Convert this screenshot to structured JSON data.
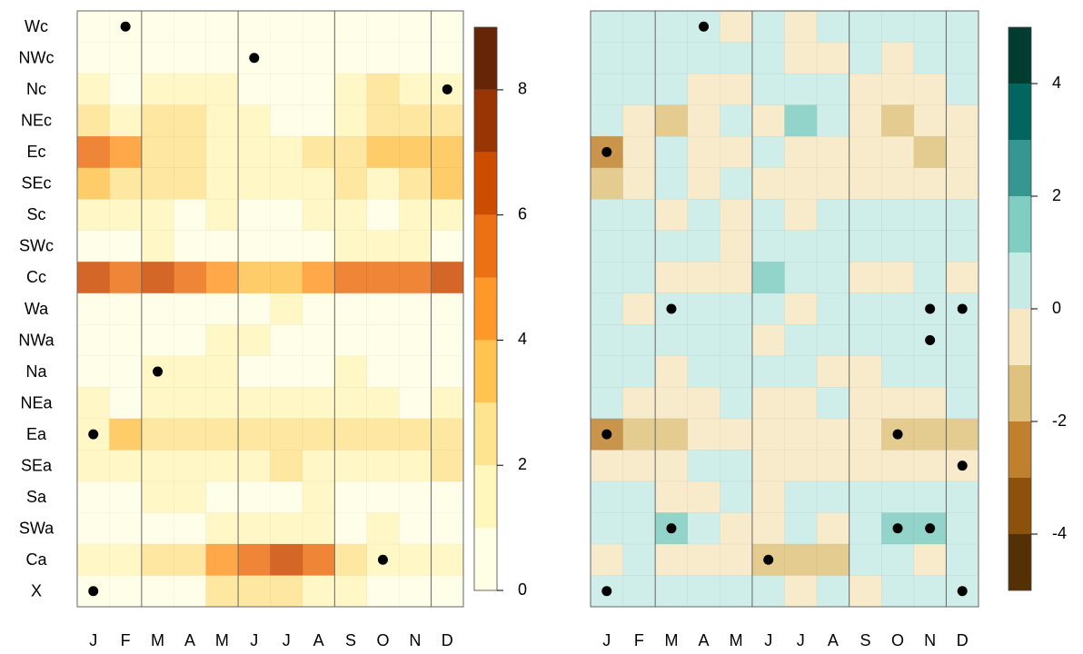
{
  "chart_data": [
    {
      "type": "heatmap",
      "x": [
        "J",
        "F",
        "M",
        "A",
        "M",
        "J",
        "J",
        "A",
        "S",
        "O",
        "N",
        "D"
      ],
      "y": [
        "Wc",
        "NWc",
        "Nc",
        "NEc",
        "Ec",
        "SEc",
        "Sc",
        "SWc",
        "Cc",
        "Wa",
        "NWa",
        "Na",
        "NEa",
        "Ea",
        "SEa",
        "Sa",
        "SWa",
        "Ca",
        "X"
      ],
      "values": [
        [
          0.7,
          0.5,
          0.6,
          0.6,
          0.6,
          0.4,
          0.5,
          0.5,
          0.6,
          0.6,
          0.5,
          0.6
        ],
        [
          0.5,
          0.5,
          0.6,
          0.6,
          0.6,
          0.4,
          0.5,
          0.5,
          0.6,
          0.6,
          0.5,
          0.6
        ],
        [
          1.5,
          0.5,
          1.4,
          1.4,
          1.3,
          0.5,
          0.7,
          0.8,
          1.4,
          2.0,
          1.0,
          1.5
        ],
        [
          2.2,
          1.5,
          2.3,
          2.3,
          1.5,
          1.5,
          0.8,
          0.7,
          1.6,
          2.2,
          2.0,
          2.3
        ],
        [
          5.5,
          4.5,
          2.3,
          2.3,
          1.5,
          1.5,
          1.8,
          2.4,
          2.3,
          3.2,
          3.2,
          3.5
        ],
        [
          3.3,
          2.5,
          2.2,
          2.2,
          1.5,
          1.5,
          1.7,
          1.8,
          2.4,
          1.4,
          2.4,
          3.5
        ],
        [
          1.5,
          1.5,
          1.4,
          0.6,
          1.4,
          0.5,
          0.7,
          1.4,
          1.4,
          0.5,
          1.3,
          1.4
        ],
        [
          0.6,
          0.6,
          1.4,
          0.6,
          0.8,
          0.5,
          0.5,
          0.7,
          1.0,
          1.4,
          1.2,
          0.6
        ],
        [
          6.3,
          5.5,
          6.3,
          5.5,
          4.5,
          3.5,
          3.5,
          4.5,
          5.6,
          5.6,
          5.5,
          6.3
        ],
        [
          0.6,
          0.6,
          0.6,
          0.6,
          0.6,
          0.5,
          1.5,
          0.6,
          0.6,
          0.6,
          0.6,
          0.6
        ],
        [
          0.6,
          0.6,
          0.6,
          0.7,
          1.3,
          1.4,
          0.7,
          0.7,
          0.6,
          0.6,
          0.6,
          0.6
        ],
        [
          0.6,
          0.6,
          1.4,
          1.4,
          1.4,
          0.6,
          0.6,
          0.7,
          1.3,
          0.7,
          0.7,
          0.6
        ],
        [
          1.4,
          0.6,
          1.4,
          1.4,
          1.4,
          1.4,
          1.4,
          1.4,
          1.4,
          1.4,
          0.7,
          1.4
        ],
        [
          1.5,
          3.3,
          2.2,
          2.2,
          2.2,
          2.2,
          2.2,
          2.2,
          2.1,
          2.1,
          2.0,
          2.1
        ],
        [
          1.5,
          1.5,
          1.4,
          1.4,
          1.4,
          1.5,
          2.3,
          1.5,
          1.4,
          1.4,
          1.4,
          2.2
        ],
        [
          0.6,
          0.6,
          1.4,
          1.4,
          0.6,
          0.5,
          0.5,
          1.4,
          0.6,
          0.6,
          0.6,
          0.6
        ],
        [
          0.6,
          0.6,
          0.5,
          0.5,
          1.4,
          1.4,
          1.4,
          1.4,
          0.7,
          1.4,
          0.7,
          0.6
        ],
        [
          1.5,
          1.4,
          2.2,
          2.2,
          4.3,
          5.6,
          6.3,
          5.5,
          2.2,
          1.4,
          1.5,
          1.4
        ],
        [
          0.6,
          0.6,
          0.6,
          0.7,
          2.2,
          2.2,
          2.2,
          1.4,
          1.4,
          0.7,
          0.6,
          0.6
        ]
      ],
      "levels": [
        0,
        1,
        2,
        3,
        4,
        5,
        6,
        7,
        8,
        9
      ],
      "colors": [
        "#ffffe5",
        "#fff7bc",
        "#fee391",
        "#fec44f",
        "#fe9929",
        "#ec7014",
        "#cc4c02",
        "#993404",
        "#662506"
      ],
      "zlim": [
        0,
        9
      ],
      "zticks": [
        0,
        2,
        4,
        6,
        8
      ],
      "markers": [
        [
          0,
          1
        ],
        [
          1,
          5
        ],
        [
          2,
          11
        ],
        [
          11,
          2
        ],
        [
          13,
          0
        ],
        [
          17,
          9
        ],
        [
          18,
          0
        ]
      ]
    },
    {
      "type": "heatmap",
      "x": [
        "J",
        "F",
        "M",
        "A",
        "M",
        "J",
        "J",
        "A",
        "S",
        "O",
        "N",
        "D"
      ],
      "values": [
        [
          0.5,
          0.5,
          0.5,
          0.5,
          -0.5,
          0.5,
          -0.5,
          0.5,
          0.5,
          0.5,
          0.5,
          0.5
        ],
        [
          0.5,
          0.5,
          0.5,
          0.5,
          0.5,
          0.5,
          -0.5,
          -0.5,
          0.5,
          -0.5,
          0.5,
          0.5
        ],
        [
          0.5,
          0.5,
          0.5,
          -0.5,
          -0.5,
          0.5,
          0.5,
          0.5,
          -0.5,
          -0.5,
          -0.5,
          0.5
        ],
        [
          0.5,
          -0.5,
          -1.5,
          -0.5,
          0.5,
          -0.5,
          1.5,
          0.5,
          -0.5,
          -1.5,
          -0.5,
          -0.5
        ],
        [
          -2.5,
          -0.5,
          0.5,
          -0.5,
          -0.5,
          0.5,
          -0.5,
          -0.5,
          -0.5,
          -0.5,
          -1.5,
          -0.5
        ],
        [
          -1.5,
          -0.5,
          0.5,
          -0.5,
          0.5,
          -0.5,
          -0.5,
          -0.5,
          -0.5,
          -0.5,
          -0.5,
          -0.5
        ],
        [
          0.5,
          0.5,
          -0.5,
          0.5,
          -0.5,
          0.5,
          -0.5,
          0.5,
          0.5,
          0.5,
          0.5,
          0.5
        ],
        [
          0.5,
          0.5,
          0.5,
          0.5,
          -0.5,
          0.5,
          0.5,
          0.5,
          0.5,
          0.5,
          0.5,
          0.5
        ],
        [
          0.5,
          0.5,
          -0.5,
          -0.5,
          -0.5,
          1.5,
          0.5,
          0.5,
          -0.5,
          -0.5,
          0.5,
          -0.5
        ],
        [
          0.5,
          -0.5,
          0.5,
          0.5,
          0.5,
          0.5,
          -0.5,
          0.5,
          0.5,
          0.5,
          0.5,
          0.5
        ],
        [
          0.5,
          0.5,
          0.5,
          0.5,
          0.5,
          -0.5,
          0.5,
          0.5,
          0.5,
          0.5,
          0.5,
          0.5
        ],
        [
          0.5,
          0.5,
          -0.5,
          0.5,
          0.5,
          0.5,
          0.5,
          -0.5,
          -0.5,
          0.5,
          0.5,
          0.5
        ],
        [
          0.5,
          -0.5,
          -0.5,
          -0.5,
          0.5,
          -0.5,
          -0.5,
          0.5,
          -0.5,
          -0.5,
          -0.5,
          0.5
        ],
        [
          -2.5,
          -1.5,
          -1.5,
          -0.5,
          -0.5,
          -0.5,
          -0.5,
          -0.5,
          -0.5,
          -1.5,
          -1.5,
          -1.5
        ],
        [
          -0.5,
          -0.5,
          -0.5,
          0.5,
          0.5,
          -0.5,
          -0.5,
          -0.5,
          -0.5,
          -0.5,
          -0.5,
          -0.5
        ],
        [
          0.5,
          0.5,
          -0.5,
          -0.5,
          0.5,
          -0.5,
          0.5,
          0.5,
          0.5,
          0.5,
          0.5,
          0.5
        ],
        [
          0.5,
          0.5,
          1.5,
          0.5,
          -0.5,
          -0.5,
          0.5,
          -0.5,
          0.5,
          1.5,
          1.5,
          0.5
        ],
        [
          -0.5,
          0.5,
          -0.5,
          -0.5,
          -0.5,
          -1.5,
          -1.5,
          -1.5,
          0.5,
          0.5,
          -0.5,
          0.5
        ],
        [
          0.5,
          0.5,
          0.5,
          0.5,
          0.5,
          0.5,
          -0.5,
          0.5,
          -0.5,
          0.5,
          0.5,
          0.5
        ]
      ],
      "levels": [
        -5,
        -4,
        -3,
        -2,
        -1,
        0,
        1,
        2,
        3,
        4,
        5
      ],
      "colors": [
        "#543005",
        "#8c510a",
        "#bf812d",
        "#dfc27d",
        "#f6e8c3",
        "#c7eae5",
        "#80cdc1",
        "#35978f",
        "#01665e",
        "#003c30"
      ],
      "zlim": [
        -5,
        5
      ],
      "zticks": [
        -4,
        -2,
        0,
        2,
        4
      ],
      "markers": [
        [
          0,
          3
        ],
        [
          4,
          0
        ],
        [
          9,
          2
        ],
        [
          9,
          10
        ],
        [
          9,
          11
        ],
        [
          10,
          10
        ],
        [
          13,
          0
        ],
        [
          13,
          9
        ],
        [
          14,
          11
        ],
        [
          16,
          2
        ],
        [
          16,
          9
        ],
        [
          16,
          10
        ],
        [
          17,
          5
        ],
        [
          18,
          0
        ],
        [
          18,
          11
        ]
      ]
    }
  ]
}
